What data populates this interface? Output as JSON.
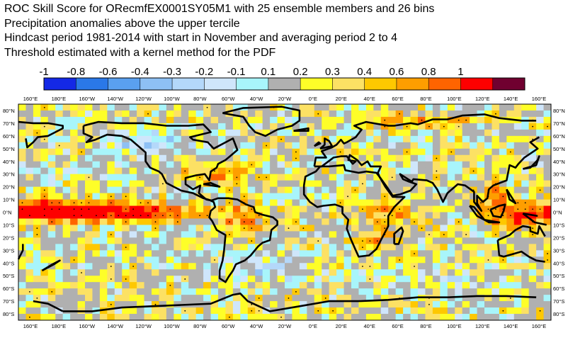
{
  "title_lines": [
    "ROC Skill Score for ORecmfEX0001SY05M1 with 25 ensemble members and 26 bins",
    "Precipitation anomalies above the upper tercile",
    "Hindcast period 1981-2014 with start in November and averaging period  2 to  4",
    "Threshold estimated with a kernel method for the PDF"
  ],
  "colorbar": {
    "labels": [
      "-1",
      "-0.8",
      "-0.6",
      "-0.4",
      "-0.3",
      "-0.2",
      "-0.1",
      "0.1",
      "0.2",
      "0.3",
      "0.4",
      "0.6",
      "0.8",
      "1"
    ],
    "colors": [
      "#1428e6",
      "#2a78e8",
      "#5aa0ef",
      "#8ec0f4",
      "#b4d8fa",
      "#cfe6fb",
      "#a8f5fb",
      "#b0b0b0",
      "#fefe28",
      "#fce164",
      "#fec800",
      "#fe9e00",
      "#fe6400",
      "#fe0000",
      "#700030"
    ]
  },
  "map": {
    "lon_labels": [
      "160°E",
      "180°E",
      "160°W",
      "140°W",
      "120°W",
      "100°W",
      "80°W",
      "60°W",
      "40°W",
      "20°W",
      "0°E",
      "20°E",
      "40°E",
      "60°E",
      "80°E",
      "100°E",
      "120°E",
      "140°E",
      "160°E"
    ],
    "lat_labels": [
      "80°N",
      "70°N",
      "60°N",
      "50°N",
      "40°N",
      "30°N",
      "20°N",
      "10°N",
      "0°N",
      "10°S",
      "20°S",
      "30°S",
      "40°S",
      "50°S",
      "60°S",
      "70°S",
      "80°S"
    ]
  }
}
